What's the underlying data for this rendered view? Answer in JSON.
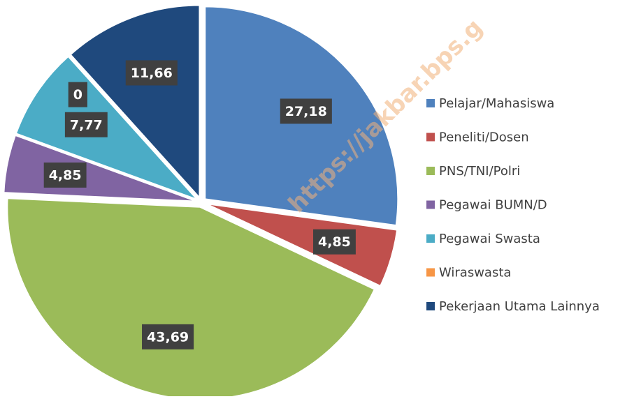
{
  "chart_data": {
    "type": "pie",
    "watermark": "https://jakbar.bps.g",
    "categories": [
      "Pelajar/Mahasiswa",
      "Peneliti/Dosen",
      "PNS/TNI/Polri",
      "Pegawai BUMN/D",
      "Pegawai Swasta",
      "Wiraswasta",
      "Pekerjaan Utama Lainnya"
    ],
    "values": [
      27.18,
      4.85,
      43.69,
      4.85,
      7.77,
      0,
      11.66
    ],
    "value_labels": [
      "27,18",
      "4,85",
      "43,69",
      "4,85",
      "7,77",
      "0",
      "11,66"
    ],
    "colors": [
      "#4f81bd",
      "#c0504d",
      "#9bbb59",
      "#8064a2",
      "#4bacc6",
      "#f79646",
      "#1f497d"
    ],
    "legend": "right"
  }
}
